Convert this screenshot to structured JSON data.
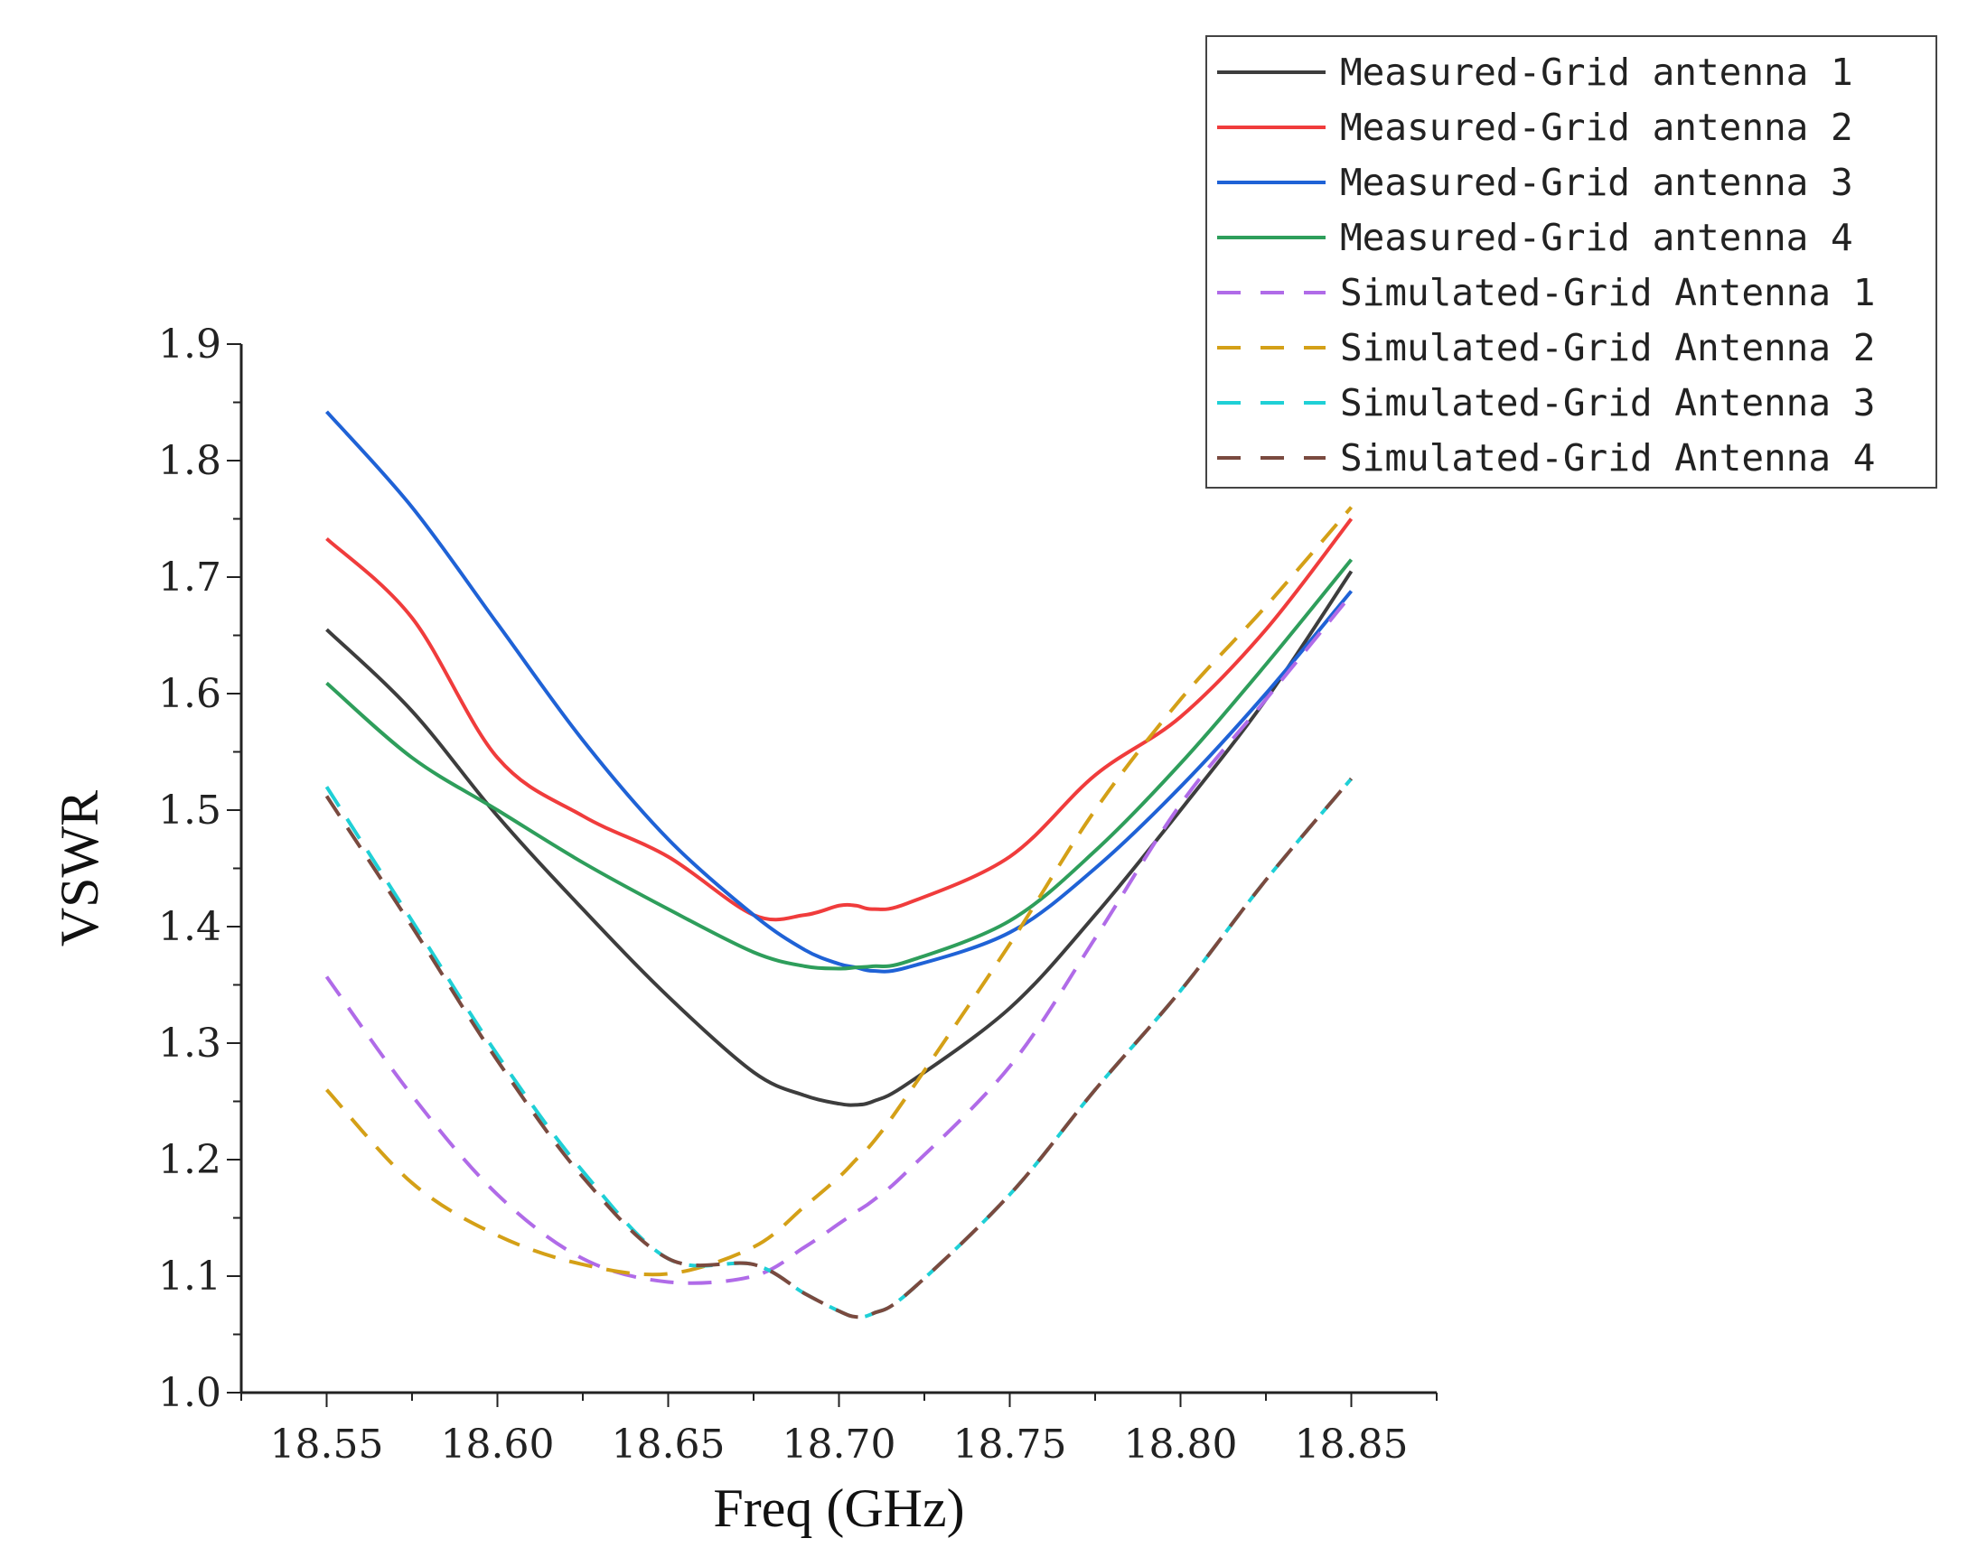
{
  "chart_data": {
    "type": "line",
    "title": "",
    "xlabel": "Freq (GHz)",
    "ylabel": "VSWR",
    "xlim": [
      18.525,
      18.875
    ],
    "ylim": [
      1.0,
      1.9
    ],
    "xticks": [
      18.55,
      18.6,
      18.65,
      18.7,
      18.75,
      18.8,
      18.85
    ],
    "xtick_labels": [
      "18.55",
      "18.60",
      "18.65",
      "18.70",
      "18.75",
      "18.80",
      "18.85"
    ],
    "yticks": [
      1.0,
      1.1,
      1.2,
      1.3,
      1.4,
      1.5,
      1.6,
      1.7,
      1.8,
      1.9
    ],
    "ytick_labels": [
      "1.0",
      "1.1",
      "1.2",
      "1.3",
      "1.4",
      "1.5",
      "1.6",
      "1.7",
      "1.8",
      "1.9"
    ],
    "grid": false,
    "legend_position": "top-right",
    "x": [
      18.55,
      18.575,
      18.6,
      18.625,
      18.65,
      18.675,
      18.69,
      18.7,
      18.705,
      18.71,
      18.72,
      18.75,
      18.775,
      18.8,
      18.825,
      18.85
    ],
    "series": [
      {
        "name": "Measured-Grid antenna 1",
        "color": "#3d3d3d",
        "dash": false,
        "values": [
          1.655,
          1.585,
          1.495,
          1.415,
          1.34,
          1.275,
          1.255,
          1.248,
          1.247,
          1.25,
          1.265,
          1.33,
          1.41,
          1.5,
          1.595,
          1.705
        ]
      },
      {
        "name": "Measured-Grid antenna 2",
        "color": "#f03c3c",
        "dash": false,
        "values": [
          1.733,
          1.665,
          1.545,
          1.495,
          1.46,
          1.41,
          1.41,
          1.418,
          1.418,
          1.415,
          1.42,
          1.46,
          1.53,
          1.58,
          1.655,
          1.75
        ]
      },
      {
        "name": "Measured-Grid antenna 3",
        "color": "#1f62d6",
        "dash": false,
        "values": [
          1.842,
          1.76,
          1.66,
          1.56,
          1.475,
          1.41,
          1.38,
          1.368,
          1.365,
          1.362,
          1.365,
          1.395,
          1.45,
          1.52,
          1.6,
          1.688
        ]
      },
      {
        "name": "Measured-Grid antenna 4",
        "color": "#2e9e5b",
        "dash": false,
        "values": [
          1.609,
          1.545,
          1.5,
          1.455,
          1.415,
          1.378,
          1.366,
          1.364,
          1.365,
          1.366,
          1.37,
          1.405,
          1.465,
          1.54,
          1.625,
          1.715
        ]
      },
      {
        "name": "Simulated-Grid Antenna 1",
        "color": "#b06be8",
        "dash": true,
        "values": [
          1.357,
          1.255,
          1.17,
          1.115,
          1.095,
          1.1,
          1.125,
          1.145,
          1.155,
          1.165,
          1.19,
          1.28,
          1.39,
          1.505,
          1.595,
          1.685
        ]
      },
      {
        "name": "Simulated-Grid Antenna 2",
        "color": "#d4a017",
        "dash": true,
        "values": [
          1.26,
          1.18,
          1.135,
          1.11,
          1.102,
          1.125,
          1.16,
          1.185,
          1.2,
          1.215,
          1.255,
          1.385,
          1.5,
          1.595,
          1.675,
          1.76
        ]
      },
      {
        "name": "Simulated-Grid Antenna 3",
        "color": "#1fd0d6",
        "dash": true,
        "values": [
          1.52,
          1.405,
          1.29,
          1.19,
          1.115,
          1.11,
          1.085,
          1.07,
          1.065,
          1.068,
          1.085,
          1.17,
          1.26,
          1.345,
          1.44,
          1.527
        ]
      },
      {
        "name": "Simulated-Grid Antenna 4",
        "color": "#7a4a3f",
        "dash": true,
        "values": [
          1.512,
          1.4,
          1.285,
          1.185,
          1.115,
          1.11,
          1.085,
          1.07,
          1.065,
          1.068,
          1.085,
          1.17,
          1.26,
          1.345,
          1.44,
          1.527
        ]
      }
    ]
  }
}
